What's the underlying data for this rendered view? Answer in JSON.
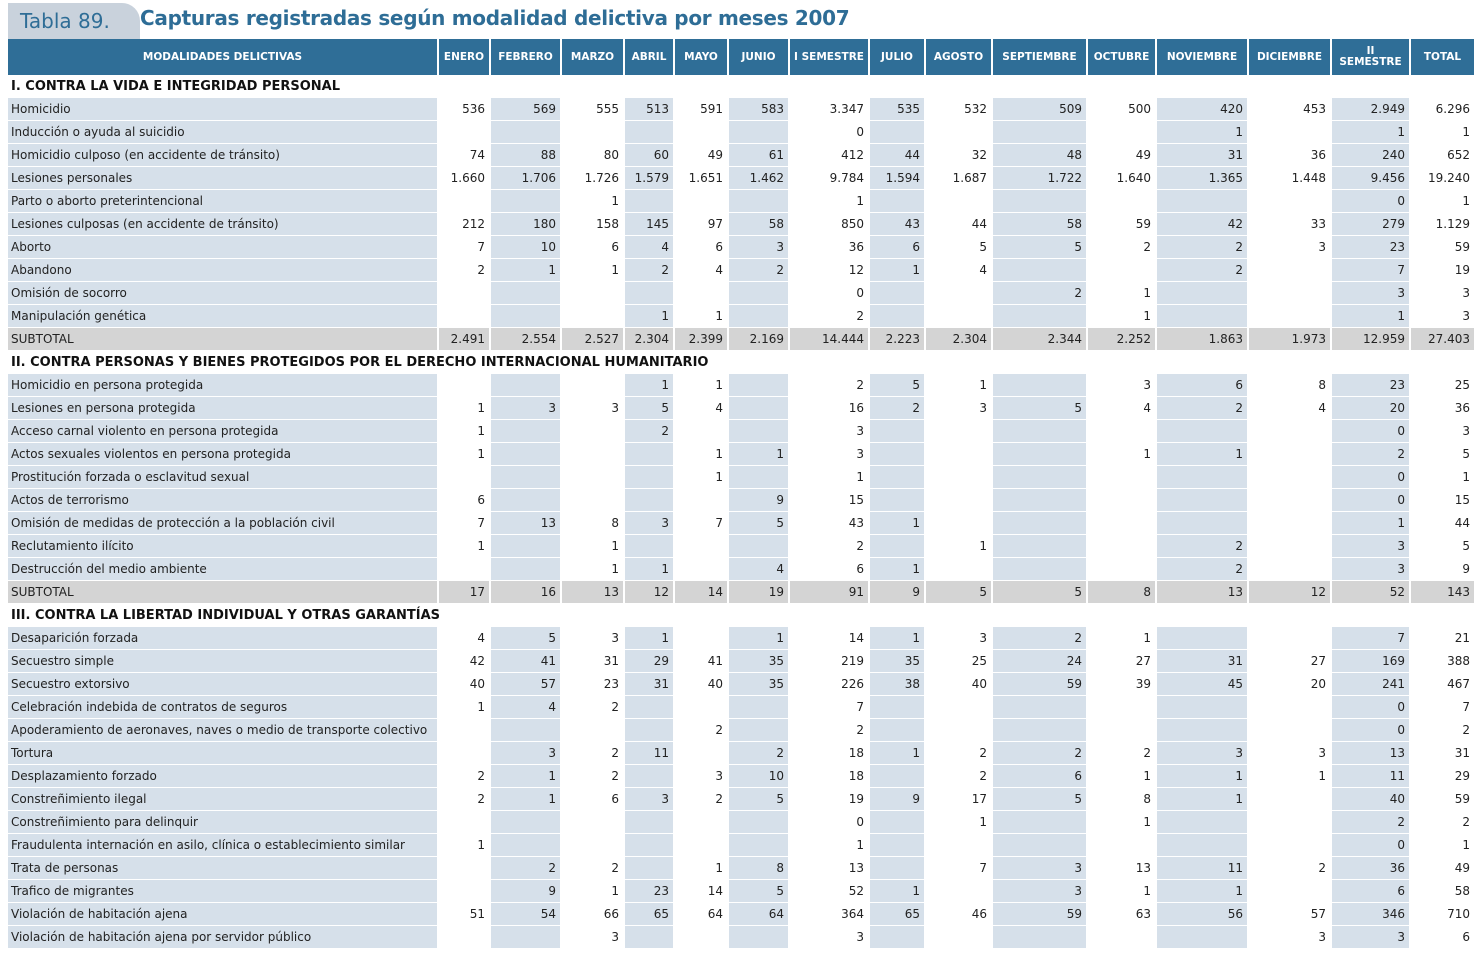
{
  "header": {
    "tab_label": "Tabla 89.",
    "title": "Capturas registradas según modalidad delictiva por meses 2007"
  },
  "columns": [
    "MODALIDADES DELICTIVAS",
    "ENERO",
    "FEBRERO",
    "MARZO",
    "ABRIL",
    "MAYO",
    "JUNIO",
    "I SEMESTRE",
    "JULIO",
    "AGOSTO",
    "SEPTIEMBRE",
    "OCTUBRE",
    "NOVIEMBRE",
    "DICIEMBRE",
    "II SEMESTRE",
    "TOTAL"
  ],
  "rows": [
    {
      "type": "section",
      "label": "I. CONTRA LA VIDA E INTEGRIDAD PERSONAL"
    },
    {
      "type": "row",
      "cells": [
        "Homicidio",
        "536",
        "569",
        "555",
        "513",
        "591",
        "583",
        "3.347",
        "535",
        "532",
        "509",
        "500",
        "420",
        "453",
        "2.949",
        "6.296"
      ]
    },
    {
      "type": "row",
      "cells": [
        "Inducción o ayuda al suicidio",
        "",
        "",
        "",
        "",
        "",
        "",
        "0",
        "",
        "",
        "",
        "",
        "1",
        "",
        "1",
        "1"
      ]
    },
    {
      "type": "row",
      "cells": [
        "Homicidio culposo (en accidente de tránsito)",
        "74",
        "88",
        "80",
        "60",
        "49",
        "61",
        "412",
        "44",
        "32",
        "48",
        "49",
        "31",
        "36",
        "240",
        "652"
      ]
    },
    {
      "type": "row",
      "cells": [
        "Lesiones personales",
        "1.660",
        "1.706",
        "1.726",
        "1.579",
        "1.651",
        "1.462",
        "9.784",
        "1.594",
        "1.687",
        "1.722",
        "1.640",
        "1.365",
        "1.448",
        "9.456",
        "19.240"
      ]
    },
    {
      "type": "row",
      "cells": [
        "Parto o aborto preterintencional",
        "",
        "",
        "1",
        "",
        "",
        "",
        "1",
        "",
        "",
        "",
        "",
        "",
        "",
        "0",
        "1"
      ]
    },
    {
      "type": "row",
      "cells": [
        "Lesiones culposas (en accidente de tránsito)",
        "212",
        "180",
        "158",
        "145",
        "97",
        "58",
        "850",
        "43",
        "44",
        "58",
        "59",
        "42",
        "33",
        "279",
        "1.129"
      ]
    },
    {
      "type": "row",
      "cells": [
        "Aborto",
        "7",
        "10",
        "6",
        "4",
        "6",
        "3",
        "36",
        "6",
        "5",
        "5",
        "2",
        "2",
        "3",
        "23",
        "59"
      ]
    },
    {
      "type": "row",
      "cells": [
        "Abandono",
        "2",
        "1",
        "1",
        "2",
        "4",
        "2",
        "12",
        "1",
        "4",
        "",
        "",
        "2",
        "",
        "7",
        "19"
      ]
    },
    {
      "type": "row",
      "cells": [
        "Omisión de socorro",
        "",
        "",
        "",
        "",
        "",
        "",
        "0",
        "",
        "",
        "2",
        "1",
        "",
        "",
        "3",
        "3"
      ]
    },
    {
      "type": "row",
      "cells": [
        "Manipulación genética",
        "",
        "",
        "",
        "1",
        "1",
        "",
        "2",
        "",
        "",
        "",
        "1",
        "",
        "",
        "1",
        "3"
      ]
    },
    {
      "type": "subtotal",
      "cells": [
        "SUBTOTAL",
        "2.491",
        "2.554",
        "2.527",
        "2.304",
        "2.399",
        "2.169",
        "14.444",
        "2.223",
        "2.304",
        "2.344",
        "2.252",
        "1.863",
        "1.973",
        "12.959",
        "27.403"
      ]
    },
    {
      "type": "section",
      "label": "II. CONTRA PERSONAS Y BIENES PROTEGIDOS POR EL DERECHO INTERNACIONAL HUMANITARIO"
    },
    {
      "type": "row",
      "cells": [
        "Homicidio en persona protegida",
        "",
        "",
        "",
        "1",
        "1",
        "",
        "2",
        "5",
        "1",
        "",
        "3",
        "6",
        "8",
        "23",
        "25"
      ]
    },
    {
      "type": "row",
      "cells": [
        "Lesiones en persona protegida",
        "1",
        "3",
        "3",
        "5",
        "4",
        "",
        "16",
        "2",
        "3",
        "5",
        "4",
        "2",
        "4",
        "20",
        "36"
      ]
    },
    {
      "type": "row",
      "cells": [
        "Acceso carnal violento en persona protegida",
        "1",
        "",
        "",
        "2",
        "",
        "",
        "3",
        "",
        "",
        "",
        "",
        "",
        "",
        "0",
        "3"
      ]
    },
    {
      "type": "row",
      "cells": [
        "Actos sexuales violentos en persona protegida",
        "1",
        "",
        "",
        "",
        "1",
        "1",
        "3",
        "",
        "",
        "",
        "1",
        "1",
        "",
        "2",
        "5"
      ]
    },
    {
      "type": "row",
      "cells": [
        "Prostitución forzada o esclavitud sexual",
        "",
        "",
        "",
        "",
        "1",
        "",
        "1",
        "",
        "",
        "",
        "",
        "",
        "",
        "0",
        "1"
      ]
    },
    {
      "type": "row",
      "cells": [
        "Actos de terrorismo",
        "6",
        "",
        "",
        "",
        "",
        "9",
        "15",
        "",
        "",
        "",
        "",
        "",
        "",
        "0",
        "15"
      ]
    },
    {
      "type": "row",
      "cells": [
        "Omisión de medidas de protección a la población civil",
        "7",
        "13",
        "8",
        "3",
        "7",
        "5",
        "43",
        "1",
        "",
        "",
        "",
        "",
        "",
        "1",
        "44"
      ]
    },
    {
      "type": "row",
      "cells": [
        "Reclutamiento ilícito",
        "1",
        "",
        "1",
        "",
        "",
        "",
        "2",
        "",
        "1",
        "",
        "",
        "2",
        "",
        "3",
        "5"
      ]
    },
    {
      "type": "row",
      "cells": [
        "Destrucción del medio ambiente",
        "",
        "",
        "1",
        "1",
        "",
        "4",
        "6",
        "1",
        "",
        "",
        "",
        "2",
        "",
        "3",
        "9"
      ]
    },
    {
      "type": "subtotal",
      "cells": [
        "SUBTOTAL",
        "17",
        "16",
        "13",
        "12",
        "14",
        "19",
        "91",
        "9",
        "5",
        "5",
        "8",
        "13",
        "12",
        "52",
        "143"
      ]
    },
    {
      "type": "section",
      "label": "III. CONTRA LA LIBERTAD INDIVIDUAL Y OTRAS GARANTÍAS"
    },
    {
      "type": "row",
      "cells": [
        "Desaparición forzada",
        "4",
        "5",
        "3",
        "1",
        "",
        "1",
        "14",
        "1",
        "3",
        "2",
        "1",
        "",
        "",
        "7",
        "21"
      ]
    },
    {
      "type": "row",
      "cells": [
        "Secuestro simple",
        "42",
        "41",
        "31",
        "29",
        "41",
        "35",
        "219",
        "35",
        "25",
        "24",
        "27",
        "31",
        "27",
        "169",
        "388"
      ]
    },
    {
      "type": "row",
      "cells": [
        "Secuestro extorsivo",
        "40",
        "57",
        "23",
        "31",
        "40",
        "35",
        "226",
        "38",
        "40",
        "59",
        "39",
        "45",
        "20",
        "241",
        "467"
      ]
    },
    {
      "type": "row",
      "cells": [
        "Celebración indebida de contratos de seguros",
        "1",
        "4",
        "2",
        "",
        "",
        "",
        "7",
        "",
        "",
        "",
        "",
        "",
        "",
        "0",
        "7"
      ]
    },
    {
      "type": "row",
      "cells": [
        "Apoderamiento de aeronaves, naves o medio de transporte colectivo",
        "",
        "",
        "",
        "",
        "2",
        "",
        "2",
        "",
        "",
        "",
        "",
        "",
        "",
        "0",
        "2"
      ]
    },
    {
      "type": "row",
      "cells": [
        "Tortura",
        "",
        "3",
        "2",
        "11",
        "",
        "2",
        "18",
        "1",
        "2",
        "2",
        "2",
        "3",
        "3",
        "13",
        "31"
      ]
    },
    {
      "type": "row",
      "cells": [
        "Desplazamiento forzado",
        "2",
        "1",
        "2",
        "",
        "3",
        "10",
        "18",
        "",
        "2",
        "6",
        "1",
        "1",
        "1",
        "11",
        "29"
      ]
    },
    {
      "type": "row",
      "cells": [
        "Constreñimiento ilegal",
        "2",
        "1",
        "6",
        "3",
        "2",
        "5",
        "19",
        "9",
        "17",
        "5",
        "8",
        "1",
        "",
        "40",
        "59"
      ]
    },
    {
      "type": "row",
      "cells": [
        "Constreñimiento para delinquir",
        "",
        "",
        "",
        "",
        "",
        "",
        "0",
        "",
        "1",
        "",
        "1",
        "",
        "",
        "2",
        "2"
      ]
    },
    {
      "type": "row",
      "cells": [
        "Fraudulenta internación en asilo, clínica o establecimiento similar",
        "1",
        "",
        "",
        "",
        "",
        "",
        "1",
        "",
        "",
        "",
        "",
        "",
        "",
        "0",
        "1"
      ]
    },
    {
      "type": "row",
      "cells": [
        "Trata de personas",
        "",
        "2",
        "2",
        "",
        "1",
        "8",
        "13",
        "",
        "7",
        "3",
        "13",
        "11",
        "2",
        "36",
        "49"
      ]
    },
    {
      "type": "row",
      "cells": [
        "Trafico de migrantes",
        "",
        "9",
        "1",
        "23",
        "14",
        "5",
        "52",
        "1",
        "",
        "3",
        "1",
        "1",
        "",
        "6",
        "58"
      ]
    },
    {
      "type": "row",
      "cells": [
        "Violación de habitación ajena",
        "51",
        "54",
        "66",
        "65",
        "64",
        "64",
        "364",
        "65",
        "46",
        "59",
        "63",
        "56",
        "57",
        "346",
        "710"
      ]
    },
    {
      "type": "row",
      "cells": [
        "Violación de habitación ajena por servidor público",
        "",
        "",
        "3",
        "",
        "",
        "",
        "3",
        "",
        "",
        "",
        "",
        "",
        "3",
        "3",
        "6"
      ]
    }
  ]
}
